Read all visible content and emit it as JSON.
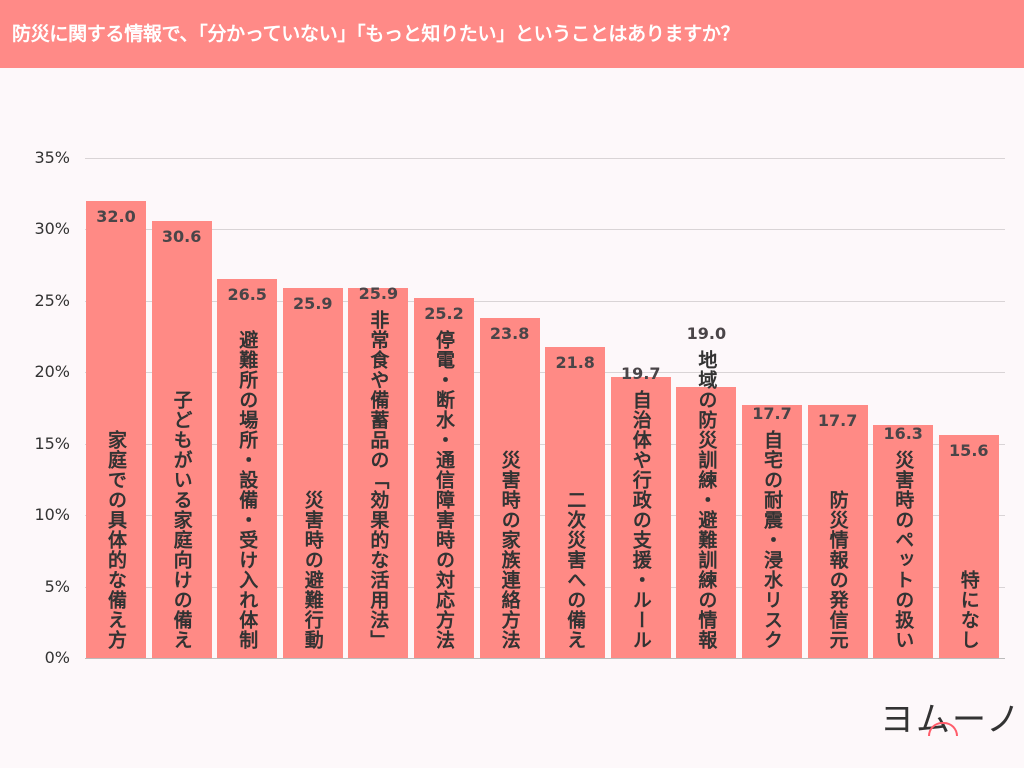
{
  "title": "防災に関する情報で、「分かっていない」「もっと知りたい」ということはありますか？",
  "logo": "ヨムーノ",
  "colors": {
    "bar": "#ff8a85",
    "header": "#ff8a87"
  },
  "chart_data": {
    "type": "bar",
    "title": "防災に関する情報で、「分かっていない」「もっと知りたい」ということはありますか？",
    "ylim": [
      0,
      35
    ],
    "yticks": [
      "0%",
      "5%",
      "10%",
      "15%",
      "20%",
      "25%",
      "30%",
      "35%"
    ],
    "grid": true,
    "categories": [
      "家庭での具体的な備え方",
      "子どもがいる家庭向けの備え",
      "避難所の場所・設備・受け入れ体制",
      "災害時の避難行動",
      "非常食や備蓄品の「効果的な活用法」",
      "停電・断水・通信障害時の対応方法",
      "災害時の家族連絡方法",
      "二次災害への備え",
      "自治体や行政の支援・ルール",
      "地域の防災訓練・避難訓練の情報",
      "自宅の耐震・浸水リスク",
      "防災情報の発信元",
      "災害時のペットの扱い",
      "特になし"
    ],
    "values": [
      32.0,
      30.6,
      26.5,
      25.9,
      25.9,
      25.2,
      23.8,
      21.8,
      19.7,
      19.0,
      17.7,
      17.7,
      16.3,
      15.6
    ],
    "labels": [
      "32.0",
      "30.6",
      "26.5",
      "25.9",
      "25.9",
      "25.2",
      "23.8",
      "21.8",
      "19.7",
      "19.0",
      "17.7",
      "17.7",
      "16.3",
      "15.6"
    ]
  }
}
